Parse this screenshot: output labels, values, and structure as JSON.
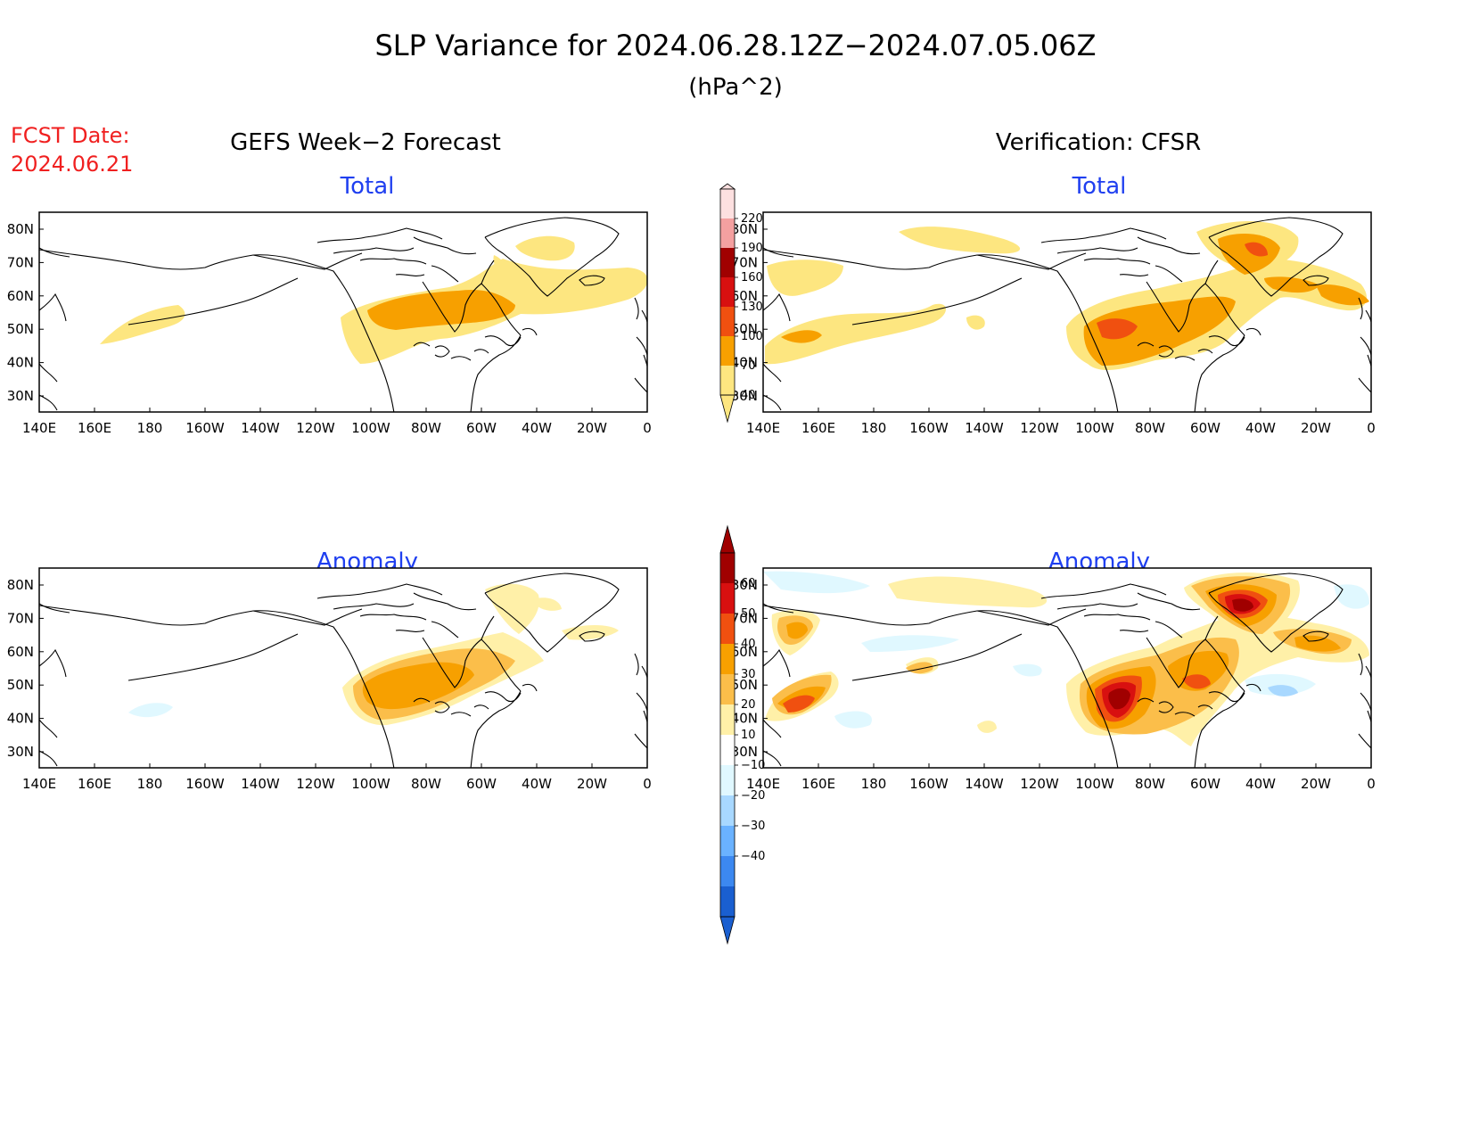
{
  "title": "SLP Variance for 2024.06.28.12Z−2024.07.05.06Z",
  "subtitle": "(hPa^2)",
  "fcst_label": "FCST Date:",
  "fcst_date": "2024.06.21",
  "left_heading": "GEFS Week−2 Forecast",
  "right_heading": "Verification: CFSR",
  "panels": [
    {
      "id": "fcst-total",
      "label": "Total"
    },
    {
      "id": "verif-total",
      "label": "Total"
    },
    {
      "id": "fcst-anomaly",
      "label": "Anomaly"
    },
    {
      "id": "verif-anomaly",
      "label": "Anomaly"
    }
  ],
  "lon_ticks": [
    "140E",
    "160E",
    "180",
    "160W",
    "140W",
    "120W",
    "100W",
    "80W",
    "60W",
    "40W",
    "20W",
    "0"
  ],
  "lat_ticks": [
    "80N",
    "70N",
    "60N",
    "50N",
    "40N",
    "30N"
  ],
  "colorbar_total": {
    "labels": [
      "220",
      "190",
      "160",
      "130",
      "100",
      "70",
      "40"
    ],
    "colors": [
      "#fde0e0",
      "#f4a0a0",
      "#a00000",
      "#d81010",
      "#f05010",
      "#f7a000",
      "#fde680"
    ]
  },
  "colorbar_anomaly": {
    "labels": [
      "60",
      "50",
      "40",
      "30",
      "20",
      "10",
      "−10",
      "−20",
      "−30",
      "−40"
    ],
    "colors": [
      "#a00000",
      "#d81010",
      "#f05010",
      "#f7a000",
      "#fbbe4a",
      "#fff0a8",
      "#ffffff",
      "#e0f8ff",
      "#a8d8ff",
      "#6ab2ff",
      "#3c88f0",
      "#1a5fd0"
    ]
  },
  "colors": {
    "c40": "#fde680",
    "c70": "#f7a000",
    "c100": "#f05010",
    "c130": "#d81010",
    "c160": "#a00000",
    "a10": "#fff0a8",
    "a20": "#fbbe4a",
    "a30": "#f7a000",
    "a40": "#f05010",
    "a50": "#d81010",
    "a60": "#a00000",
    "n10": "#e0f8ff",
    "n20": "#a8d8ff"
  }
}
